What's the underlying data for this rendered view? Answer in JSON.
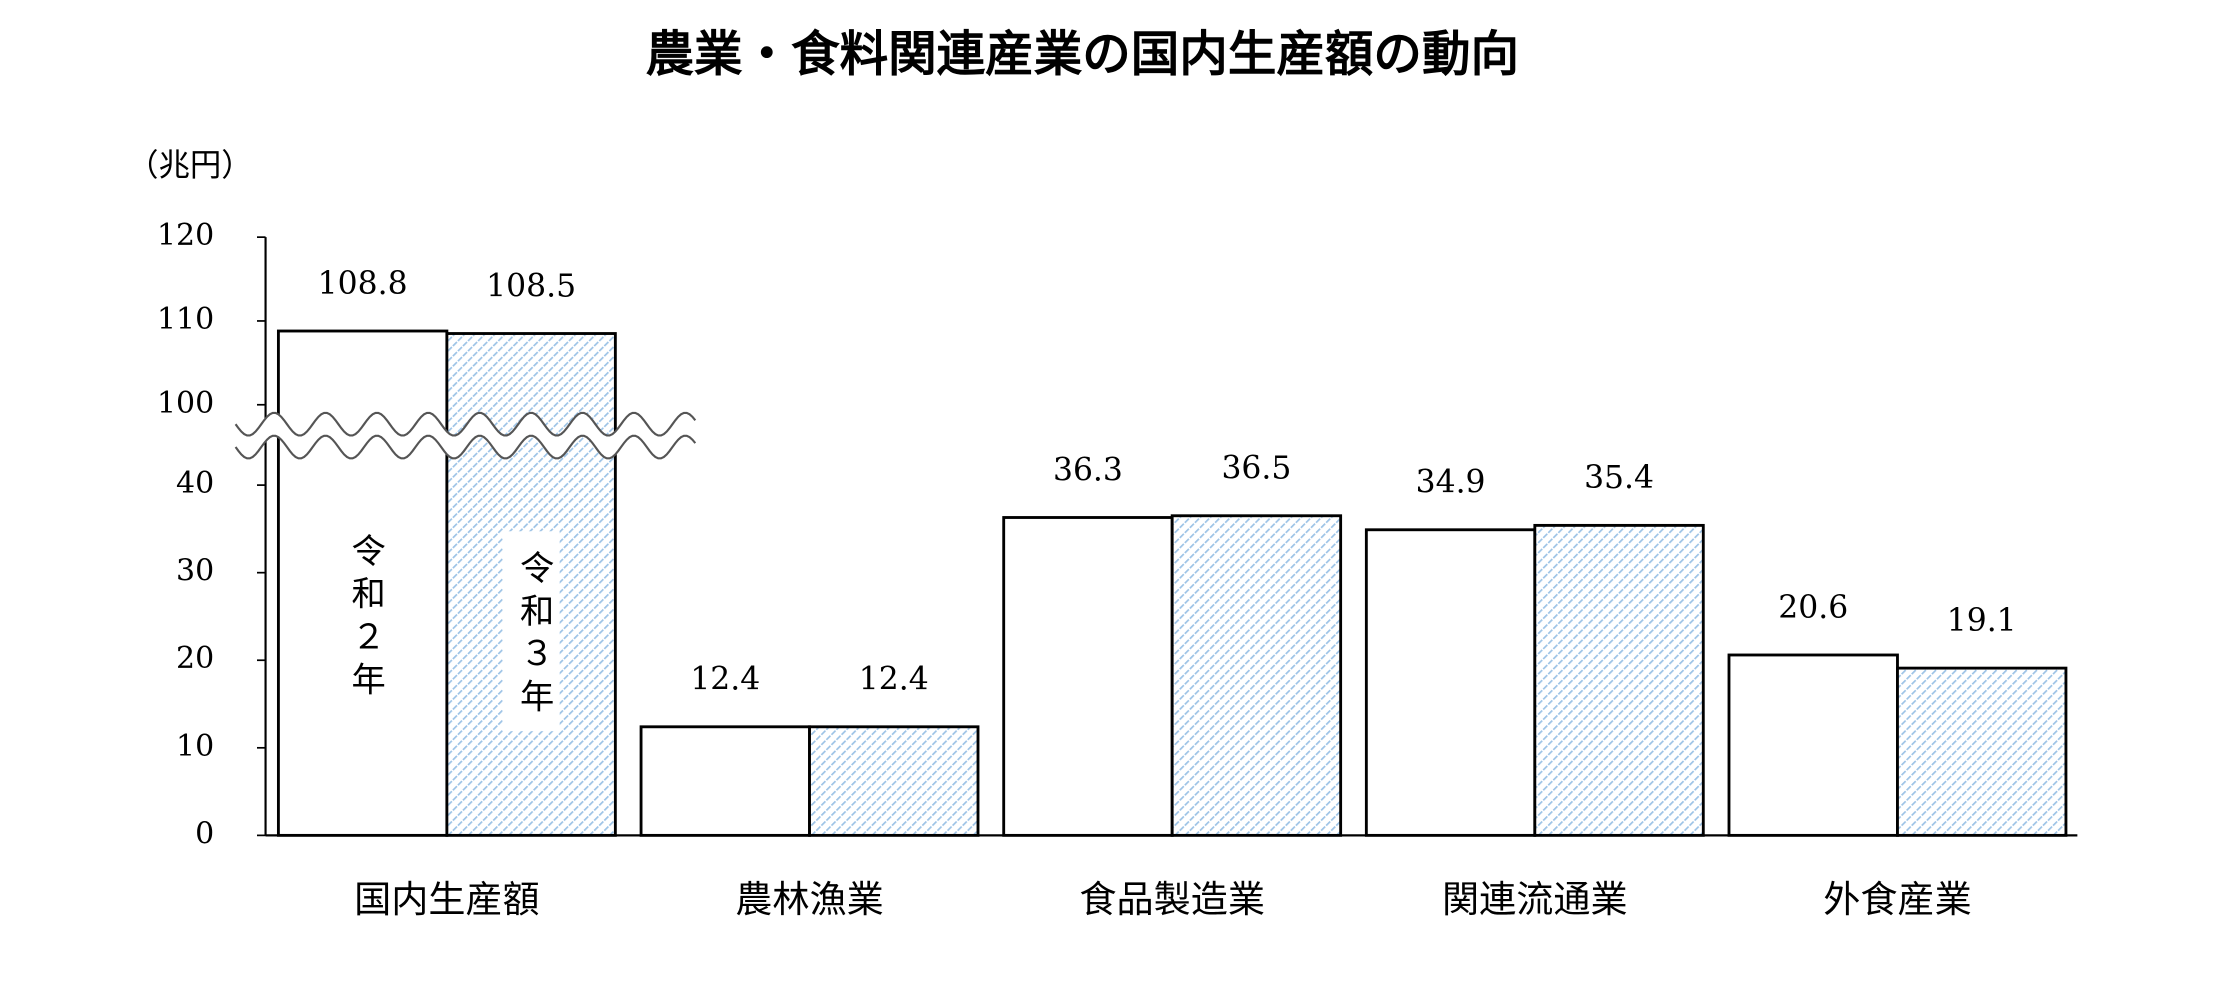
{
  "chart_data": {
    "type": "bar",
    "title": "農業・食料関連産業の国内生産額の動向",
    "y_label": "（兆円）",
    "categories": [
      "国内生産額",
      "農林漁業",
      "食品製造業",
      "関連流通業",
      "外食産業"
    ],
    "series": [
      {
        "name": "令和２年",
        "color": "#ffffff",
        "pattern": "solid",
        "values": [
          108.8,
          12.4,
          36.3,
          34.9,
          20.6
        ]
      },
      {
        "name": "令和３年",
        "color": "#9dc3e6",
        "pattern": "hatch",
        "values": [
          108.5,
          12.4,
          36.5,
          35.4,
          19.1
        ]
      }
    ],
    "ylim": [
      0,
      120
    ],
    "yticks": [
      0,
      10,
      20,
      30,
      40,
      100,
      110,
      120
    ],
    "axis_break": [
      45,
      97
    ]
  }
}
